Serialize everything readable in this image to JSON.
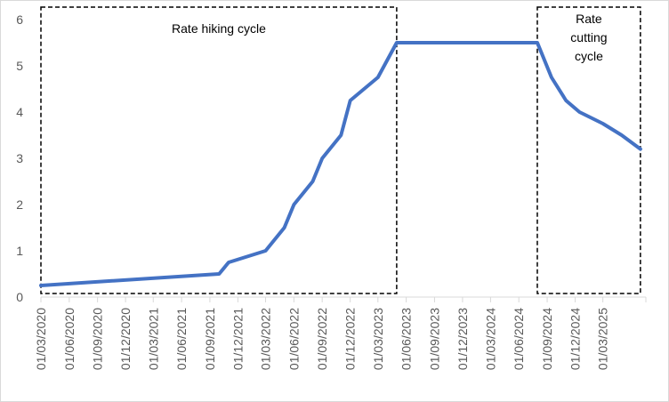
{
  "chart_data": {
    "type": "line",
    "title": "",
    "xlabel": "",
    "ylabel": "",
    "ylim": [
      0,
      6
    ],
    "yticks": [
      "0",
      "1",
      "2",
      "3",
      "4",
      "5",
      "6"
    ],
    "x_tick_labels": [
      "01/03/2020",
      "01/06/2020",
      "01/09/2020",
      "01/12/2020",
      "01/03/2021",
      "01/06/2021",
      "01/09/2021",
      "01/12/2021",
      "01/03/2022",
      "01/06/2022",
      "01/09/2022",
      "01/12/2022",
      "01/03/2023",
      "01/06/2023",
      "01/09/2023",
      "01/12/2023",
      "01/03/2024",
      "01/06/2024",
      "01/09/2024",
      "01/12/2024",
      "01/03/2025"
    ],
    "grid": false,
    "legend": "none",
    "line_color": "#4472c4",
    "series": [
      {
        "x": [
          "2020-03-01",
          "2021-10-01",
          "2021-11-01",
          "2022-03-01",
          "2022-05-01",
          "2022-06-01",
          "2022-08-01",
          "2022-09-01",
          "2022-11-01",
          "2022-12-01",
          "2023-03-01",
          "2023-05-01",
          "2024-07-31",
          "2024-09-15",
          "2024-11-01",
          "2024-12-15",
          "2025-03-01",
          "2025-05-01",
          "2025-07-01"
        ],
        "y": [
          0.25,
          0.5,
          0.75,
          1.0,
          1.5,
          2.0,
          2.5,
          3.0,
          3.5,
          4.25,
          4.75,
          5.5,
          5.5,
          4.75,
          4.25,
          4.0,
          3.75,
          3.5,
          3.2
        ]
      }
    ],
    "annotations": [
      {
        "label": "Rate hiking cycle",
        "x_start": "2020-03-01",
        "x_end": "2023-05-01"
      },
      {
        "label_lines": [
          "Rate",
          "cutting",
          "cycle"
        ],
        "x_start": "2024-07-31",
        "x_end": "2025-07-01"
      }
    ]
  }
}
